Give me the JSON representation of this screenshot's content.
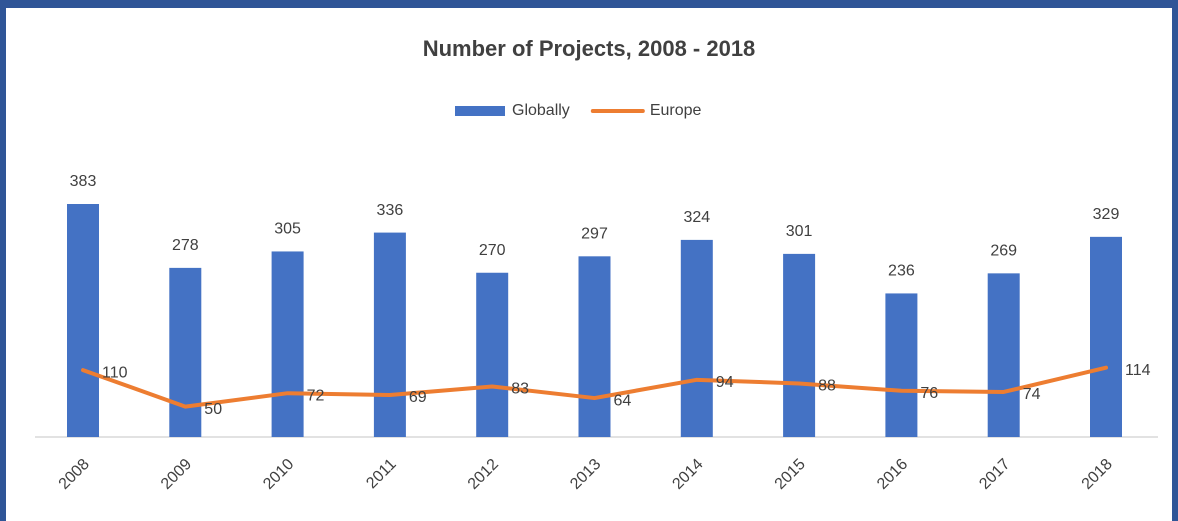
{
  "chart_data": {
    "type": "bar",
    "title": "Number of Projects, 2008 - 2018",
    "categories": [
      "2008",
      "2009",
      "2010",
      "2011",
      "2012",
      "2013",
      "2014",
      "2015",
      "2016",
      "2017",
      "2018"
    ],
    "series": [
      {
        "name": "Globally",
        "type": "bar",
        "color": "#4472c4",
        "values": [
          383,
          278,
          305,
          336,
          270,
          297,
          324,
          301,
          236,
          269,
          329
        ]
      },
      {
        "name": "Europe",
        "type": "line",
        "color": "#ed7d31",
        "values": [
          110,
          50,
          72,
          69,
          83,
          64,
          94,
          88,
          76,
          74,
          114
        ]
      }
    ],
    "legend": "top"
  }
}
